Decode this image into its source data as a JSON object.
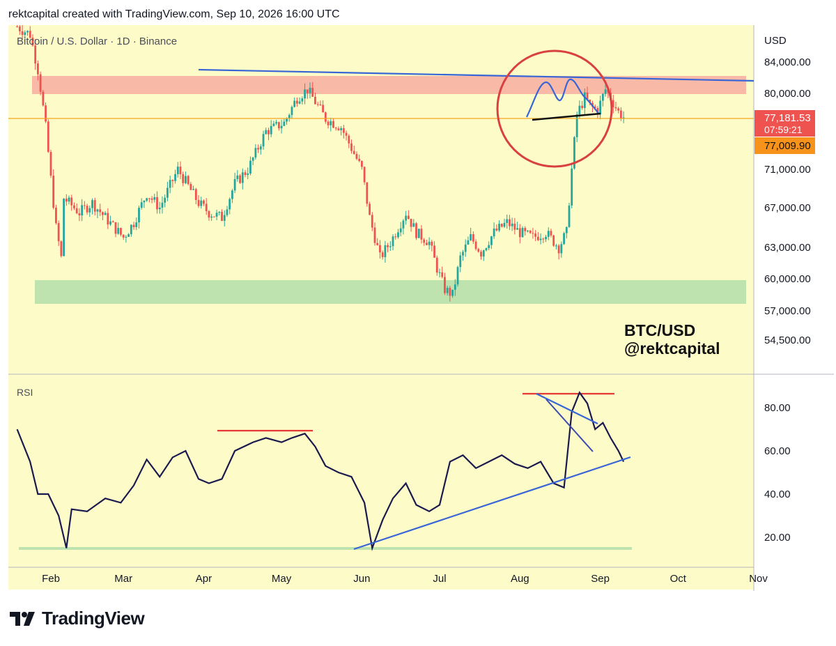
{
  "header": {
    "text": "rektcapital created with TradingView.com, Sep 10, 2026 16:00 UTC"
  },
  "brand": {
    "name": "TradingView",
    "icon": "tradingview-logo-icon"
  },
  "colors": {
    "background": "#fdfbc8",
    "up": "#26a69a",
    "down": "#ef5350",
    "resistance_zone": "#f8b9a6",
    "support_zone": "#bfe3ae",
    "trendline_blue": "#3866d6",
    "rsi_line": "#1a1a4e",
    "red_line": "#e53935",
    "price_line": "#f5a623",
    "circle": "#d94141"
  },
  "chart_data": [
    {
      "type": "candlestick",
      "title": "Bitcoin / U.S. Dollar · 1D · Binance",
      "currency": "USD",
      "watermark": [
        "BTC/USD",
        "@rektcapital"
      ],
      "x_labels": [
        "Feb",
        "Mar",
        "Apr",
        "May",
        "Jun",
        "Jul",
        "Aug",
        "Sep",
        "Oct",
        "Nov"
      ],
      "y_ticks": [
        "84,000.00",
        "80,000.00",
        "71,000.00",
        "67,000.00",
        "63,000.00",
        "60,000.00",
        "57,000.00",
        "54,500.00"
      ],
      "current_price": "77,181.53",
      "countdown": "07:59:21",
      "ref_price": "77,009.90",
      "zones": [
        {
          "name": "resistance",
          "from": 79900,
          "to": 82400
        },
        {
          "name": "support",
          "from": 57700,
          "to": 60100
        }
      ],
      "approx_close_path": [
        [
          "Jan 19",
          88500
        ],
        [
          "Jan 24",
          87500
        ],
        [
          "Jan 27",
          83000
        ],
        [
          "Jan 30",
          76000
        ],
        [
          "Feb 1",
          70000
        ],
        [
          "Feb 3",
          65000
        ],
        [
          "Feb 5",
          62000
        ],
        [
          "Feb 6",
          68000
        ],
        [
          "Feb 12",
          66500
        ],
        [
          "Feb 17",
          67500
        ],
        [
          "Feb 22",
          66000
        ],
        [
          "Mar 1",
          64000
        ],
        [
          "Mar 5",
          65500
        ],
        [
          "Mar 10",
          68500
        ],
        [
          "Mar 15",
          67000
        ],
        [
          "Mar 22",
          71000
        ],
        [
          "Mar 30",
          67500
        ],
        [
          "Apr 3",
          66500
        ],
        [
          "Apr 8",
          66000
        ],
        [
          "Apr 13",
          69500
        ],
        [
          "Apr 18",
          71000
        ],
        [
          "Apr 25",
          75500
        ],
        [
          "May 2",
          76500
        ],
        [
          "May 7",
          79500
        ],
        [
          "May 11",
          80500
        ],
        [
          "May 14",
          79000
        ],
        [
          "May 18",
          77000
        ],
        [
          "May 24",
          76000
        ],
        [
          "May 28",
          73500
        ],
        [
          "Jun 1",
          71000
        ],
        [
          "Jun 4",
          66000
        ],
        [
          "Jun 8",
          62000
        ],
        [
          "Jun 12",
          63500
        ],
        [
          "Jun 18",
          66500
        ],
        [
          "Jun 22",
          64500
        ],
        [
          "Jun 27",
          63500
        ],
        [
          "Jun 30",
          61000
        ],
        [
          "Jul 3",
          59000
        ],
        [
          "Jul 6",
          58500
        ],
        [
          "Jul 9",
          62000
        ],
        [
          "Jul 13",
          64000
        ],
        [
          "Jul 17",
          62500
        ],
        [
          "Jul 22",
          64500
        ],
        [
          "Jul 27",
          65500
        ],
        [
          "Aug 1",
          64500
        ],
        [
          "Aug 6",
          64000
        ],
        [
          "Aug 11",
          64500
        ],
        [
          "Aug 16",
          63000
        ],
        [
          "Aug 19",
          64500
        ],
        [
          "Aug 21",
          71000
        ],
        [
          "Aug 23",
          77500
        ],
        [
          "Aug 26",
          79500
        ],
        [
          "Aug 28",
          78500
        ],
        [
          "Aug 31",
          78000
        ],
        [
          "Sep 3",
          80500
        ],
        [
          "Sep 5",
          79500
        ],
        [
          "Sep 8",
          77800
        ],
        [
          "Sep 10",
          77181.53
        ]
      ]
    },
    {
      "type": "line",
      "title": "RSI",
      "y_ticks": [
        "80.00",
        "60.00",
        "40.00",
        "20.00"
      ],
      "approx_values": [
        [
          "Jan 19",
          70
        ],
        [
          "Jan 24",
          55
        ],
        [
          "Jan 27",
          40
        ],
        [
          "Jan 31",
          40
        ],
        [
          "Feb 4",
          30
        ],
        [
          "Feb 7",
          15
        ],
        [
          "Feb 9",
          33
        ],
        [
          "Feb 15",
          32
        ],
        [
          "Feb 22",
          38
        ],
        [
          "Feb 28",
          36
        ],
        [
          "Mar 5",
          44
        ],
        [
          "Mar 10",
          56
        ],
        [
          "Mar 15",
          48
        ],
        [
          "Mar 20",
          57
        ],
        [
          "Mar 25",
          60
        ],
        [
          "Mar 30",
          47
        ],
        [
          "Apr 3",
          45
        ],
        [
          "Apr 8",
          47
        ],
        [
          "Apr 13",
          60
        ],
        [
          "Apr 20",
          64
        ],
        [
          "Apr 25",
          66
        ],
        [
          "May 1",
          64
        ],
        [
          "May 5",
          66
        ],
        [
          "May 10",
          68
        ],
        [
          "May 14",
          62
        ],
        [
          "May 18",
          53
        ],
        [
          "May 23",
          50
        ],
        [
          "May 28",
          48
        ],
        [
          "Jun 2",
          36
        ],
        [
          "Jun 5",
          15
        ],
        [
          "Jun 9",
          28
        ],
        [
          "Jun 13",
          38
        ],
        [
          "Jun 18",
          45
        ],
        [
          "Jun 22",
          35
        ],
        [
          "Jun 27",
          32
        ],
        [
          "Jul 1",
          35
        ],
        [
          "Jul 5",
          55
        ],
        [
          "Jul 10",
          58
        ],
        [
          "Jul 15",
          52
        ],
        [
          "Jul 20",
          55
        ],
        [
          "Jul 25",
          58
        ],
        [
          "Jul 30",
          54
        ],
        [
          "Aug 4",
          52
        ],
        [
          "Aug 9",
          55
        ],
        [
          "Aug 14",
          45
        ],
        [
          "Aug 18",
          43
        ],
        [
          "Aug 21",
          78
        ],
        [
          "Aug 24",
          87
        ],
        [
          "Aug 27",
          82
        ],
        [
          "Aug 30",
          70
        ],
        [
          "Sep 2",
          73
        ],
        [
          "Sep 5",
          66
        ],
        [
          "Sep 8",
          60
        ],
        [
          "Sep 10",
          55
        ]
      ],
      "reference_lines": [
        {
          "name": "rsi-support",
          "value": 15
        }
      ]
    }
  ]
}
